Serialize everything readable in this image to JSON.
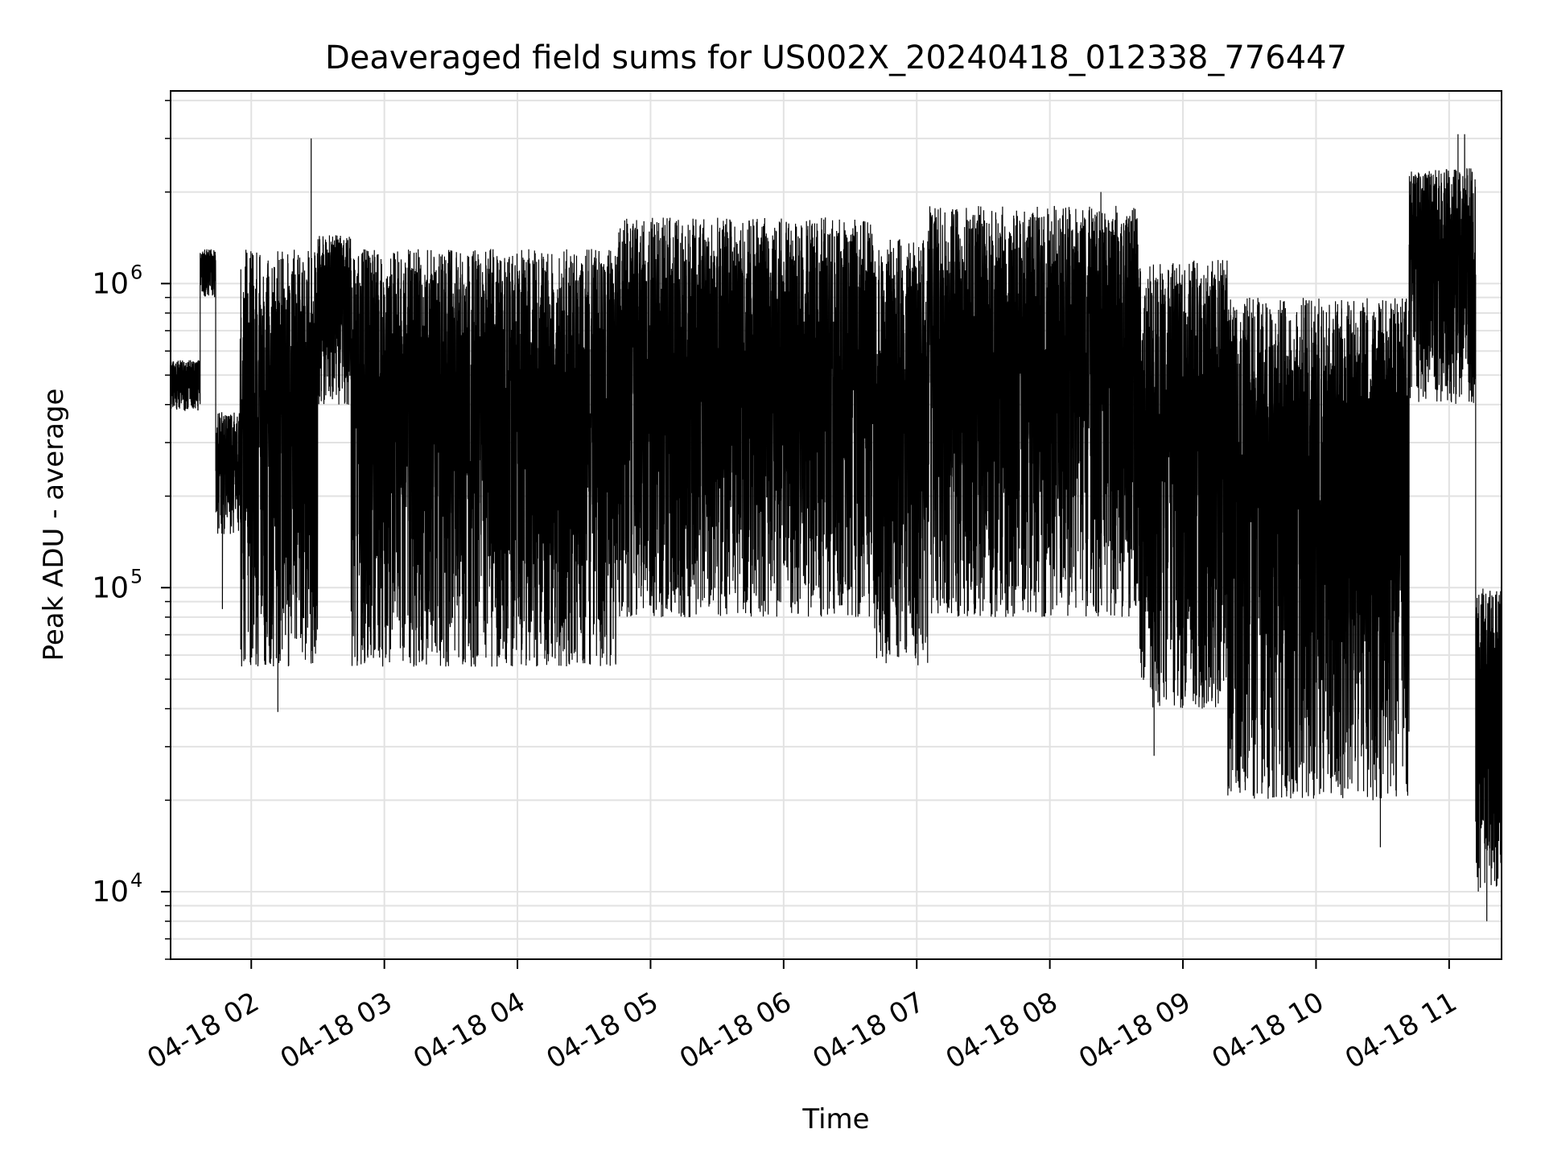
{
  "chart_data": {
    "type": "line",
    "title": "Deaveraged field sums for US002X_20240418_012338_776447",
    "xlabel": "Time",
    "ylabel": "Peak ADU - average",
    "yscale": "log",
    "xlim": [
      "2024-04-18T01:23:38",
      "2024-04-18T11:23:38"
    ],
    "ylim": [
      6000,
      4300000
    ],
    "grid": "both",
    "x_ticks": [
      "04-18 02",
      "04-18 03",
      "04-18 04",
      "04-18 05",
      "04-18 06",
      "04-18 07",
      "04-18 08",
      "04-18 09",
      "04-18 10",
      "04-18 11"
    ],
    "y_ticks": [
      {
        "base": "10",
        "exp": "4"
      },
      {
        "base": "10",
        "exp": "5"
      },
      {
        "base": "10",
        "exp": "6"
      }
    ],
    "series": [
      {
        "color": "#000000",
        "segments": [
          {
            "start": "01:23:38",
            "end": "01:37:00",
            "low": 380000,
            "high": 560000
          },
          {
            "start": "01:37:00",
            "end": "01:44:00",
            "low": 900000,
            "high": 1300000
          },
          {
            "start": "01:44:00",
            "end": "01:55:00",
            "low": 150000,
            "high": 380000
          },
          {
            "start": "01:55:00",
            "end": "02:30:00",
            "low": 55000,
            "high": 1300000
          },
          {
            "start": "02:30:00",
            "end": "02:45:00",
            "low": 400000,
            "high": 1450000
          },
          {
            "start": "02:45:00",
            "end": "04:45:00",
            "low": 55000,
            "high": 1300000
          },
          {
            "start": "04:45:00",
            "end": "06:40:00",
            "low": 80000,
            "high": 1650000
          },
          {
            "start": "06:40:00",
            "end": "07:05:00",
            "low": 55000,
            "high": 1400000
          },
          {
            "start": "07:05:00",
            "end": "08:40:00",
            "low": 80000,
            "high": 1800000
          },
          {
            "start": "08:40:00",
            "end": "09:20:00",
            "low": 40000,
            "high": 1200000
          },
          {
            "start": "09:20:00",
            "end": "10:42:00",
            "low": 20000,
            "high": 900000
          },
          {
            "start": "10:42:00",
            "end": "11:12:00",
            "low": 400000,
            "high": 2400000
          },
          {
            "start": "11:12:00",
            "end": "11:23:38",
            "low": 10000,
            "high": 100000
          }
        ],
        "spikes": [
          {
            "time": "02:27:00",
            "value": 3000000
          },
          {
            "time": "01:47:00",
            "value": 85000
          },
          {
            "time": "02:12:00",
            "value": 39000
          },
          {
            "time": "08:23:00",
            "value": 2000000
          },
          {
            "time": "08:47:00",
            "value": 28000
          },
          {
            "time": "10:29:00",
            "value": 14000
          },
          {
            "time": "11:04:00",
            "value": 3100000
          },
          {
            "time": "11:07:00",
            "value": 3100000
          },
          {
            "time": "11:17:00",
            "value": 8000
          }
        ]
      }
    ]
  }
}
